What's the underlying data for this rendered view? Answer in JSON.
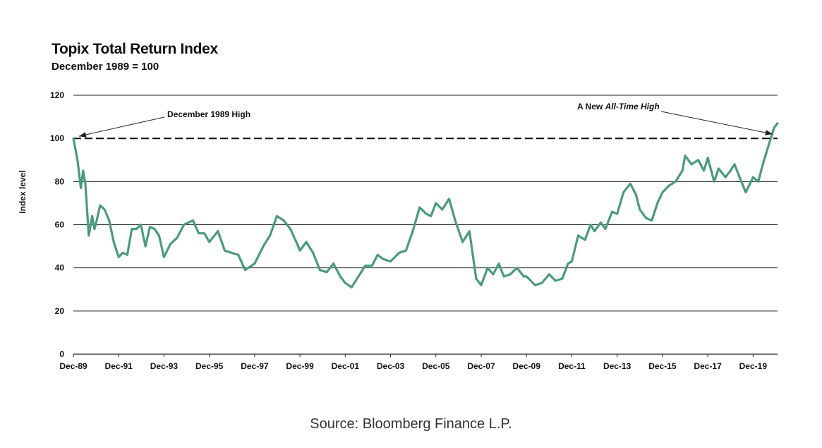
{
  "chart_data": {
    "type": "line",
    "title": "Topix Total Return Index",
    "subtitle": "December 1989 = 100",
    "ylabel": "Index level",
    "xlabel": "",
    "ylim": [
      0,
      120
    ],
    "yticks": [
      0,
      20,
      40,
      60,
      80,
      100,
      120
    ],
    "xticks": [
      "Dec-89",
      "Dec-91",
      "Dec-93",
      "Dec-95",
      "Dec-97",
      "Dec-99",
      "Dec-01",
      "Dec-03",
      "Dec-05",
      "Dec-07",
      "Dec-09",
      "Dec-11",
      "Dec-13",
      "Dec-15",
      "Dec-17",
      "Dec-19"
    ],
    "grid": true,
    "reference_line": {
      "value": 100,
      "style": "dashed"
    },
    "annotations": [
      {
        "text": "December 1989 High",
        "points_to": {
          "x": 1989.92,
          "y": 100
        }
      },
      {
        "text_prefix": "A New ",
        "text_italic": "All-Time High",
        "points_to": {
          "x": 2020.9,
          "y": 103
        }
      }
    ],
    "series_color": "#4a9a80",
    "series": [
      {
        "x": [
          1989.92,
          1990.1,
          1990.25,
          1990.35,
          1990.45,
          1990.6,
          1990.75,
          1990.85,
          1990.95,
          1991.1,
          1991.3,
          1991.5,
          1991.7,
          1991.92,
          1992.1,
          1992.3,
          1992.5,
          1992.7,
          1992.9,
          1993.1,
          1993.3,
          1993.5,
          1993.7,
          1993.92,
          1994.2,
          1994.5,
          1994.8,
          1995.2,
          1995.45,
          1995.7,
          1995.92,
          1996.3,
          1996.6,
          1996.9,
          1997.2,
          1997.5,
          1997.92,
          1998.3,
          1998.6,
          1998.9,
          1999.2,
          1999.5,
          1999.8,
          1999.92,
          2000.2,
          2000.5,
          2000.8,
          2001.1,
          2001.4,
          2001.7,
          2001.92,
          2002.2,
          2002.5,
          2002.8,
          2003.1,
          2003.35,
          2003.6,
          2003.92,
          2004.3,
          2004.6,
          2004.9,
          2005.2,
          2005.5,
          2005.7,
          2005.92,
          2006.2,
          2006.5,
          2006.8,
          2007.1,
          2007.4,
          2007.7,
          2007.92,
          2008.2,
          2008.45,
          2008.7,
          2008.92,
          2009.2,
          2009.5,
          2009.8,
          2009.92,
          2010.3,
          2010.6,
          2010.92,
          2011.2,
          2011.5,
          2011.75,
          2011.92,
          2012.2,
          2012.5,
          2012.75,
          2012.92,
          2013.2,
          2013.4,
          2013.7,
          2013.92,
          2014.2,
          2014.5,
          2014.75,
          2014.92,
          2015.2,
          2015.45,
          2015.7,
          2015.92,
          2016.2,
          2016.5,
          2016.8,
          2016.92,
          2017.2,
          2017.5,
          2017.75,
          2017.92,
          2018.2,
          2018.4,
          2018.7,
          2018.92,
          2019.1,
          2019.4,
          2019.6,
          2019.92,
          2020.15,
          2020.35,
          2020.55,
          2020.7,
          2020.85,
          2021.0
        ],
        "y": [
          100,
          90,
          77,
          85,
          79,
          55,
          64,
          58,
          62,
          69,
          67,
          62,
          52,
          45,
          47,
          46,
          58,
          58,
          60,
          50,
          59,
          58,
          55,
          45,
          51,
          54,
          60,
          62,
          56,
          56,
          52,
          57,
          48,
          47,
          46,
          39,
          42,
          50,
          55,
          64,
          62,
          58,
          51,
          48,
          52,
          47,
          39,
          38,
          42,
          36,
          33,
          31,
          36,
          41,
          41,
          46,
          44,
          43,
          47,
          48,
          57,
          68,
          65,
          64,
          70,
          67,
          72,
          61,
          52,
          57,
          35,
          32,
          40,
          37,
          42,
          36,
          37,
          40,
          36,
          36,
          32,
          33,
          37,
          34,
          35,
          42,
          43,
          55,
          53,
          60,
          57,
          61,
          58,
          66,
          65,
          75,
          79,
          74,
          67,
          63,
          62,
          70,
          75,
          78,
          80,
          85,
          92,
          88,
          90,
          85,
          91,
          80,
          86,
          82,
          85,
          88,
          80,
          75,
          82,
          80,
          88,
          95,
          100,
          105,
          107
        ]
      }
    ]
  },
  "footer": {
    "source": "Source: Bloomberg Finance L.P."
  }
}
